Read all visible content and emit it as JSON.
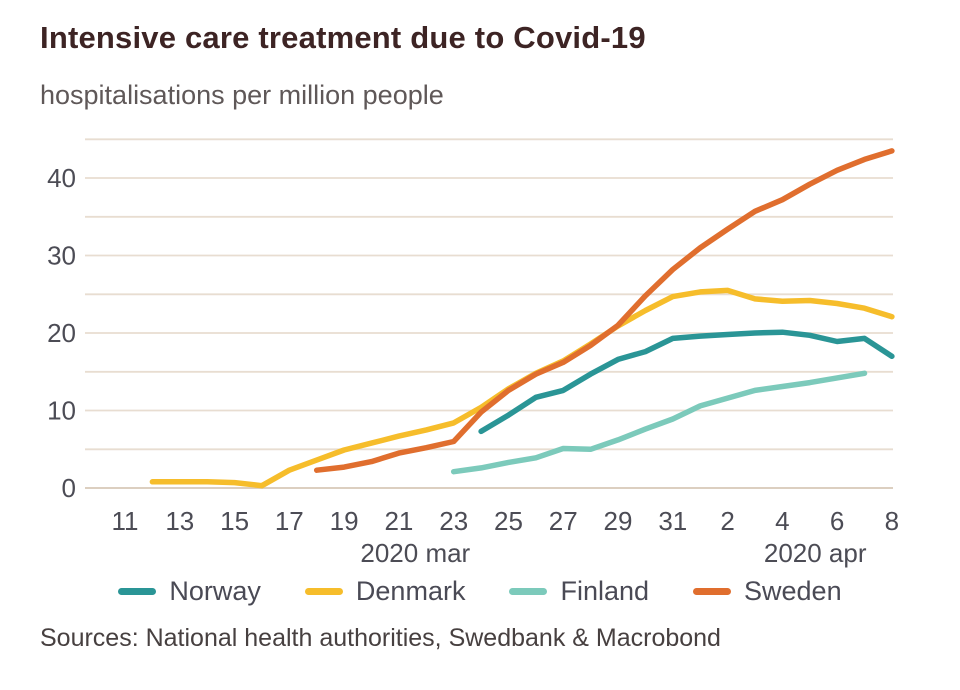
{
  "page": {
    "title": "Intensive care treatment due to Covid-19",
    "subtitle": "hospitalisations per million people",
    "source": "Sources: National health authorities, Swedbank & Macrobond"
  },
  "chart_data": {
    "type": "line",
    "title": "Intensive care treatment due to Covid-19",
    "subtitle": "hospitalisations per million people",
    "source": "Sources: National health authorities, Swedbank & Macrobond",
    "grid": true,
    "legend_position": "bottom",
    "colors": {
      "grid": "#e8ddd1",
      "baseline": "#dccfc0",
      "axis_text": "#4c4c55"
    },
    "x": [
      "Mar 11",
      "Mar 12",
      "Mar 13",
      "Mar 14",
      "Mar 15",
      "Mar 16",
      "Mar 17",
      "Mar 18",
      "Mar 19",
      "Mar 20",
      "Mar 21",
      "Mar 22",
      "Mar 23",
      "Mar 24",
      "Mar 25",
      "Mar 26",
      "Mar 27",
      "Mar 28",
      "Mar 29",
      "Mar 30",
      "Mar 31",
      "Apr 1",
      "Apr 2",
      "Apr 3",
      "Apr 4",
      "Apr 5",
      "Apr 6",
      "Apr 7",
      "Apr 8"
    ],
    "x_axis": {
      "ticks": [
        {
          "i": 0,
          "label": "11"
        },
        {
          "i": 2,
          "label": "13"
        },
        {
          "i": 4,
          "label": "15"
        },
        {
          "i": 6,
          "label": "17"
        },
        {
          "i": 8,
          "label": "19"
        },
        {
          "i": 10,
          "label": "21"
        },
        {
          "i": 12,
          "label": "23"
        },
        {
          "i": 14,
          "label": "25"
        },
        {
          "i": 16,
          "label": "27"
        },
        {
          "i": 18,
          "label": "29"
        },
        {
          "i": 20,
          "label": "31"
        },
        {
          "i": 22,
          "label": "2"
        },
        {
          "i": 24,
          "label": "4"
        },
        {
          "i": 26,
          "label": "6"
        },
        {
          "i": 28,
          "label": "8"
        }
      ],
      "month_labels": [
        {
          "i": 10.6,
          "label": "2020 mar"
        },
        {
          "i": 25.2,
          "label": "2020 apr"
        }
      ]
    },
    "y_axis": {
      "min": 0,
      "max": 45,
      "grid_step": 5,
      "ticks": [
        0,
        10,
        20,
        30,
        40
      ]
    },
    "series": [
      {
        "name": "Norway",
        "color": "#2a9596",
        "values": [
          null,
          null,
          null,
          null,
          null,
          null,
          null,
          null,
          null,
          null,
          null,
          null,
          null,
          7.3,
          9.4,
          11.7,
          12.6,
          14.7,
          16.6,
          17.6,
          19.3,
          19.6,
          19.8,
          20.0,
          20.1,
          19.7,
          18.9,
          19.3,
          17.0
        ]
      },
      {
        "name": "Denmark",
        "color": "#f6bd2b",
        "values": [
          null,
          0.8,
          0.8,
          0.8,
          0.7,
          0.3,
          2.3,
          3.6,
          4.9,
          5.8,
          6.7,
          7.5,
          8.4,
          10.4,
          12.8,
          14.8,
          16.4,
          18.6,
          20.9,
          22.9,
          24.7,
          25.3,
          25.5,
          24.4,
          24.1,
          24.2,
          23.8,
          23.2,
          22.1
        ]
      },
      {
        "name": "Finland",
        "color": "#7ccabb",
        "values": [
          null,
          null,
          null,
          null,
          null,
          null,
          null,
          null,
          null,
          null,
          null,
          null,
          2.1,
          2.6,
          3.3,
          3.9,
          5.1,
          5.0,
          6.2,
          7.6,
          8.9,
          10.6,
          11.6,
          12.6,
          13.1,
          13.6,
          14.2,
          14.8,
          null
        ]
      },
      {
        "name": "Sweden",
        "color": "#e06e2e",
        "values": [
          null,
          null,
          null,
          null,
          null,
          null,
          null,
          2.3,
          2.7,
          3.4,
          4.5,
          5.2,
          6.0,
          9.8,
          12.6,
          14.7,
          16.2,
          18.4,
          21.0,
          24.8,
          28.2,
          31.0,
          33.4,
          35.7,
          37.2,
          39.2,
          41.0,
          42.4,
          43.5
        ]
      }
    ]
  }
}
